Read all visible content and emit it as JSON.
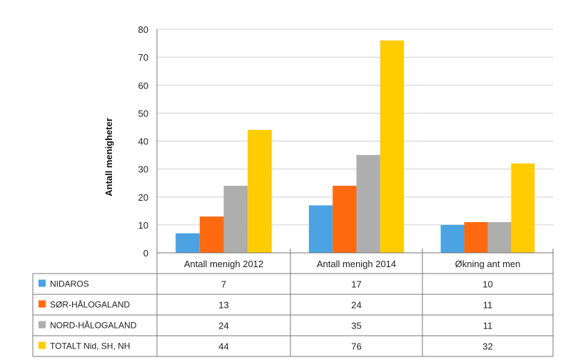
{
  "chart_data": {
    "type": "bar",
    "title": "",
    "ylabel": "Antall menigheter",
    "ylim": [
      0,
      80
    ],
    "yticks": [
      0,
      10,
      20,
      30,
      40,
      50,
      60,
      70,
      80
    ],
    "grid": true,
    "legend": "data-table",
    "categories": [
      "Antall menigh 2012",
      "Antall menigh 2014",
      "Økning ant men"
    ],
    "series": [
      {
        "name": "NIDAROS",
        "color": "#4ba3e3",
        "values": [
          7,
          17,
          10
        ]
      },
      {
        "name": "SØR-HÅLOGALAND",
        "color": "#ff6a10",
        "values": [
          13,
          24,
          11
        ]
      },
      {
        "name": "NORD-HÅLOGALAND",
        "color": "#aeaeae",
        "values": [
          24,
          35,
          11
        ]
      },
      {
        "name": "TOTALT Nid, SH, NH",
        "color": "#ffcc00",
        "values": [
          44,
          76,
          32
        ]
      }
    ]
  }
}
